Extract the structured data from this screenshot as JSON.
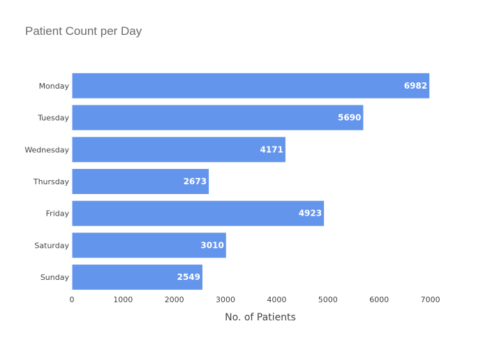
{
  "chart_data": {
    "type": "bar",
    "orientation": "horizontal",
    "title": "Patient Count per Day",
    "xlabel": "No. of Patients",
    "ylabel": "",
    "categories": [
      "Monday",
      "Tuesday",
      "Wednesday",
      "Thursday",
      "Friday",
      "Saturday",
      "Sunday"
    ],
    "values": [
      6982,
      5690,
      4171,
      2673,
      4923,
      3010,
      2549
    ],
    "xlim": [
      0,
      7000
    ],
    "xticks": [
      0,
      1000,
      2000,
      3000,
      4000,
      5000,
      6000,
      7000
    ],
    "bar_color": "#6495ED",
    "label_color": "#ffffff",
    "grid": false,
    "data_labels": "inside-end"
  }
}
